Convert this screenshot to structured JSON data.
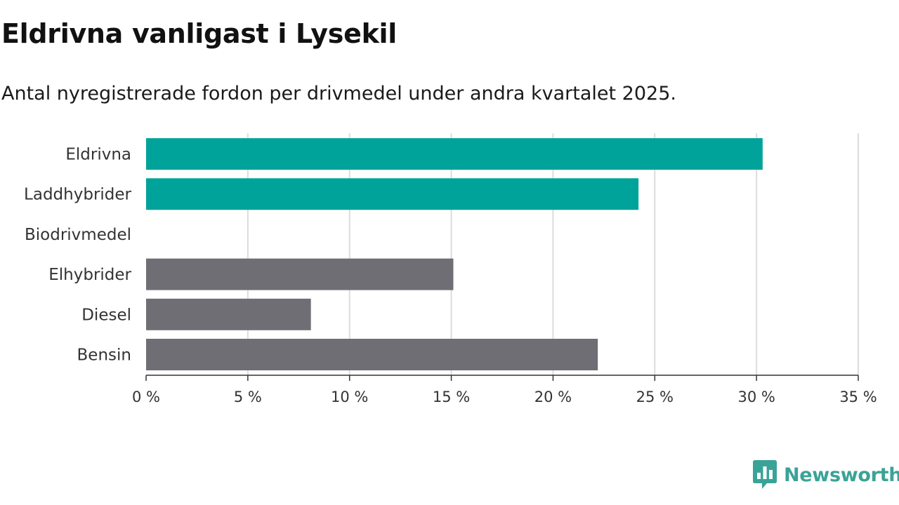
{
  "header": {
    "title": "Eldrivna vanligast i Lysekil",
    "subtitle": "Antal nyregistrerade fordon per drivmedel under andra kvartalet 2025."
  },
  "chart_data": {
    "type": "bar",
    "orientation": "horizontal",
    "categories": [
      "Eldrivna",
      "Laddhybrider",
      "Biodrivmedel",
      "Elhybrider",
      "Diesel",
      "Bensin"
    ],
    "values": [
      30.3,
      24.2,
      0,
      15.1,
      8.1,
      22.2
    ],
    "colors": [
      "#00a39a",
      "#00a39a",
      "#6f6e74",
      "#6f6e74",
      "#6f6e74",
      "#6f6e74"
    ],
    "xlim": [
      0,
      35
    ],
    "xticks": [
      0,
      5,
      10,
      15,
      20,
      25,
      30,
      35
    ],
    "tick_suffix": " %",
    "grid": true
  },
  "branding": {
    "logo_text": "Newsworthy",
    "logo_icon": "bar-chart-badge-icon",
    "logo_color": "#3aa397"
  }
}
